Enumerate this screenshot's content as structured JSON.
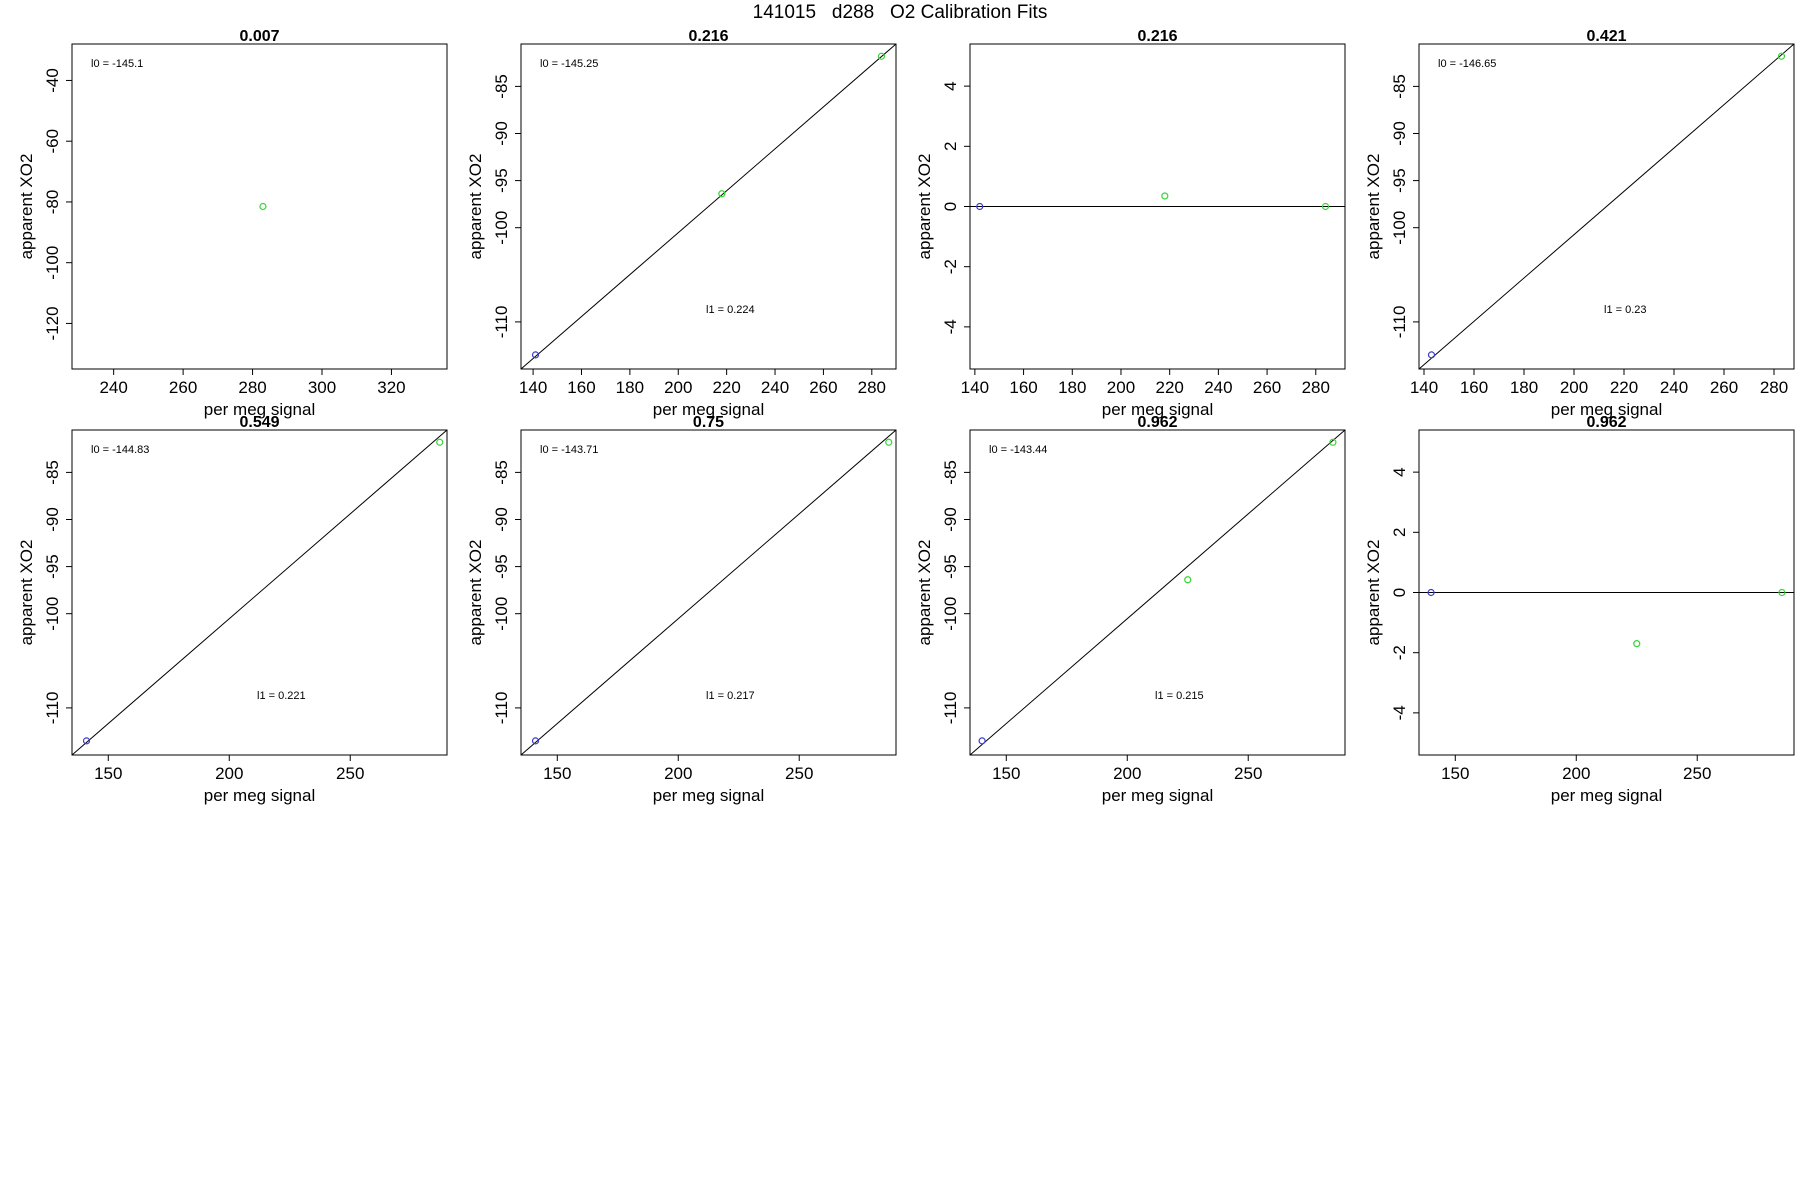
{
  "title": "141015   d288   O2 Calibration Fits",
  "colors": {
    "reference": "#3b3bcf",
    "sample": "#35d535",
    "sample_light": "#66e066",
    "axis": "#000000",
    "fit": "#000000"
  },
  "chart_data": [
    {
      "type": "scatter",
      "title": "0.007",
      "xlabel": "per meg signal",
      "ylabel": "apparent XO2",
      "xlim": [
        228,
        336
      ],
      "ylim": [
        -135,
        -28
      ],
      "xticks": [
        "240",
        "260",
        "280",
        "300",
        "320"
      ],
      "yticks": [
        "-40",
        "-60",
        "-80",
        "-100",
        "-120"
      ],
      "series": [
        {
          "color": "#35d535",
          "points": [
            [
              283,
              -81.5
            ]
          ]
        }
      ],
      "fit": null,
      "labels": {
        "l0": "l0 =  -145.1",
        "l1": ""
      }
    },
    {
      "type": "scatter",
      "title": "0.216",
      "xlabel": "per meg signal",
      "ylabel": "apparent XO2",
      "xlim": [
        135,
        290
      ],
      "ylim": [
        -115,
        -80.5
      ],
      "xticks": [
        "140",
        "160",
        "180",
        "200",
        "220",
        "240",
        "260",
        "280"
      ],
      "yticks": [
        "-85",
        "-90",
        "-95",
        "-100",
        "-110"
      ],
      "series": [
        {
          "color": "#3b3bcf",
          "points": [
            [
              141,
              -113.5
            ]
          ]
        },
        {
          "color": "#35d535",
          "points": [
            [
              218,
              -96.4
            ],
            [
              284,
              -81.8
            ]
          ]
        }
      ],
      "fit": {
        "x0": 135,
        "y0": -115,
        "x1": 290,
        "y1": -80.5
      },
      "labels": {
        "l0": "l0 =  -145.25",
        "l1": "l1 =  0.224"
      }
    },
    {
      "type": "scatter",
      "title": "0.216",
      "xlabel": "per meg signal",
      "ylabel": "apparent XO2",
      "xlim": [
        138,
        292
      ],
      "ylim": [
        -5.4,
        5.4
      ],
      "xticks": [
        "140",
        "160",
        "180",
        "200",
        "220",
        "240",
        "260",
        "280"
      ],
      "yticks": [
        "4",
        "2",
        "0",
        "-2",
        "-4"
      ],
      "series": [
        {
          "color": "#3b3bcf",
          "points": [
            [
              142,
              0
            ]
          ]
        },
        {
          "color": "#35d535",
          "points": [
            [
              218,
              0.35
            ],
            [
              284,
              0
            ]
          ]
        }
      ],
      "fit": {
        "x0": 138,
        "y0": 0,
        "x1": 292,
        "y1": 0
      },
      "labels": {
        "l0": "",
        "l1": ""
      }
    },
    {
      "type": "scatter",
      "title": "0.421",
      "xlabel": "per meg signal",
      "ylabel": "apparent XO2",
      "xlim": [
        138,
        288
      ],
      "ylim": [
        -115,
        -80.5
      ],
      "xticks": [
        "140",
        "160",
        "180",
        "200",
        "220",
        "240",
        "260",
        "280"
      ],
      "yticks": [
        "-85",
        "-90",
        "-95",
        "-100",
        "-110"
      ],
      "series": [
        {
          "color": "#3b3bcf",
          "points": [
            [
              143,
              -113.5
            ]
          ]
        },
        {
          "color": "#35d535",
          "points": [
            [
              283,
              -81.8
            ]
          ]
        }
      ],
      "fit": {
        "x0": 138,
        "y0": -115,
        "x1": 288,
        "y1": -80.5
      },
      "labels": {
        "l0": "l0 =  -146.65",
        "l1": "l1 =  0.23"
      }
    },
    {
      "type": "scatter",
      "title": "0.549",
      "xlabel": "per meg signal",
      "ylabel": "apparent XO2",
      "xlim": [
        135,
        290
      ],
      "ylim": [
        -115,
        -80.5
      ],
      "xticks": [
        "150",
        "200",
        "250"
      ],
      "yticks": [
        "-85",
        "-90",
        "-95",
        "-100",
        "-110"
      ],
      "series": [
        {
          "color": "#3b3bcf",
          "points": [
            [
              141,
              -113.5
            ]
          ]
        },
        {
          "color": "#35d535",
          "points": [
            [
              287,
              -81.8
            ]
          ]
        }
      ],
      "fit": {
        "x0": 135,
        "y0": -115,
        "x1": 290,
        "y1": -80.5
      },
      "labels": {
        "l0": "l0 =  -144.83",
        "l1": "l1 =  0.221"
      }
    },
    {
      "type": "scatter",
      "title": "0.75",
      "xlabel": "per meg signal",
      "ylabel": "apparent XO2",
      "xlim": [
        135,
        290
      ],
      "ylim": [
        -115,
        -80.5
      ],
      "xticks": [
        "150",
        "200",
        "250"
      ],
      "yticks": [
        "-85",
        "-90",
        "-95",
        "-100",
        "-110"
      ],
      "series": [
        {
          "color": "#3b3bcf",
          "points": [
            [
              141,
              -113.5
            ]
          ]
        },
        {
          "color": "#35d535",
          "points": [
            [
              287,
              -81.8
            ]
          ]
        }
      ],
      "fit": {
        "x0": 135,
        "y0": -115,
        "x1": 290,
        "y1": -80.5
      },
      "labels": {
        "l0": "l0 =  -143.71",
        "l1": "l1 =  0.217"
      }
    },
    {
      "type": "scatter",
      "title": "0.962",
      "xlabel": "per meg signal",
      "ylabel": "apparent XO2",
      "xlim": [
        135,
        290
      ],
      "ylim": [
        -115,
        -80.5
      ],
      "xticks": [
        "150",
        "200",
        "250"
      ],
      "yticks": [
        "-85",
        "-90",
        "-95",
        "-100",
        "-110"
      ],
      "series": [
        {
          "color": "#3b3bcf",
          "points": [
            [
              140,
              -113.5
            ]
          ]
        },
        {
          "color": "#35d535",
          "points": [
            [
              225,
              -96.4
            ],
            [
              285,
              -81.8
            ]
          ]
        }
      ],
      "fit": {
        "x0": 135,
        "y0": -115,
        "x1": 290,
        "y1": -80.5
      },
      "labels": {
        "l0": "l0 =  -143.44",
        "l1": "l1 =  0.215"
      }
    },
    {
      "type": "scatter",
      "title": "0.962",
      "xlabel": "per meg signal",
      "ylabel": "apparent XO2",
      "xlim": [
        135,
        290
      ],
      "ylim": [
        -5.4,
        5.4
      ],
      "xticks": [
        "150",
        "200",
        "250"
      ],
      "yticks": [
        "4",
        "2",
        "0",
        "-2",
        "-4"
      ],
      "series": [
        {
          "color": "#3b3bcf",
          "points": [
            [
              140,
              0
            ]
          ]
        },
        {
          "color": "#35d535",
          "points": [
            [
              225,
              -1.7
            ],
            [
              285,
              0
            ]
          ]
        }
      ],
      "fit": {
        "x0": 135,
        "y0": 0,
        "x1": 290,
        "y1": 0
      },
      "labels": {
        "l0": "",
        "l1": ""
      }
    }
  ]
}
